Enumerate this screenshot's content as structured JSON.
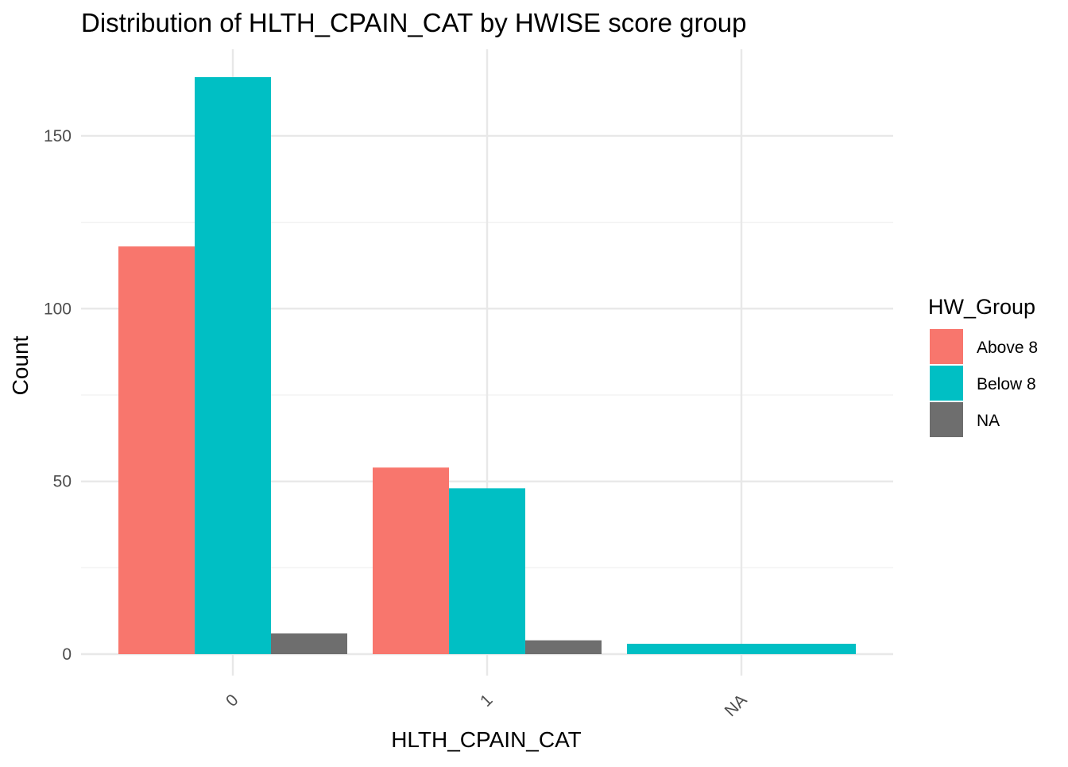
{
  "chart_data": {
    "type": "bar",
    "title": "Distribution of HLTH_CPAIN_CAT by HWISE score group",
    "xlabel": "HLTH_CPAIN_CAT",
    "ylabel": "Count",
    "categories": [
      "0",
      "1",
      "NA"
    ],
    "ylim": [
      0,
      167
    ],
    "yticks": [
      0,
      50,
      100,
      150
    ],
    "grid": true,
    "legend": {
      "title": "HW_Group",
      "position": "right"
    },
    "series": [
      {
        "name": "Above 8",
        "color": "#F8766D",
        "values": [
          118,
          54,
          null
        ]
      },
      {
        "name": "Below 8",
        "color": "#00BFC4",
        "values": [
          167,
          48,
          3
        ]
      },
      {
        "name": "NA",
        "color": "#6E6E6E",
        "values": [
          6,
          4,
          null
        ]
      }
    ]
  }
}
